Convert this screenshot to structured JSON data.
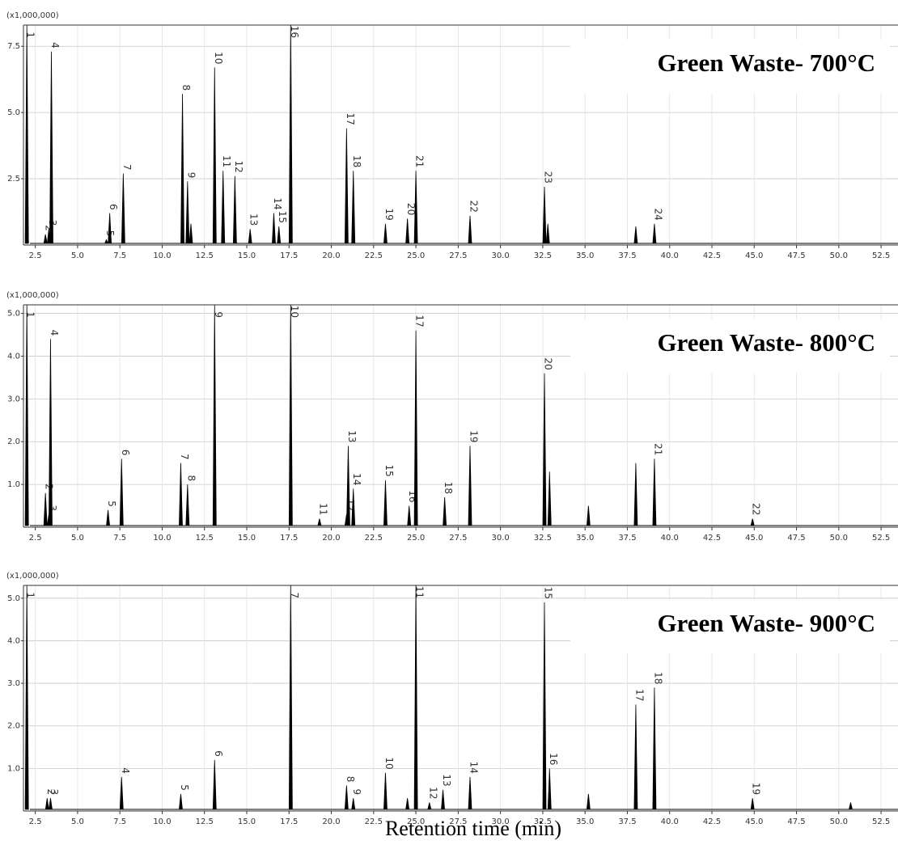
{
  "chart_data": [
    {
      "type": "chromatogram",
      "title": "Green Waste- 700°C",
      "y_multiplier": "(x1,000,000)",
      "color": "#000000",
      "grid": true,
      "x": [
        2.0,
        3.1,
        3.3,
        3.45,
        6.7,
        6.9,
        7.7,
        11.2,
        11.5,
        13.1,
        13.6,
        14.3,
        15.2,
        16.6,
        16.9,
        17.6,
        20.9,
        21.3,
        23.2,
        24.5,
        25.0,
        28.2,
        32.6,
        39.1,
        11.7,
        32.8,
        38.0
      ],
      "values": [
        8.3,
        0.4,
        0.6,
        7.3,
        0.2,
        1.2,
        2.7,
        5.7,
        2.4,
        6.7,
        2.8,
        2.6,
        0.6,
        1.2,
        0.7,
        8.3,
        4.4,
        2.8,
        0.8,
        1.0,
        2.8,
        1.1,
        2.2,
        0.8,
        0.8,
        0.8,
        0.7
      ],
      "peak_labels": [
        "1",
        "2",
        "3",
        "4",
        "5",
        "6",
        "7",
        "8",
        "9",
        "10",
        "11",
        "12",
        "13",
        "14",
        "15",
        "16",
        "17",
        "18",
        "19",
        "20",
        "21",
        "22",
        "23",
        "24",
        null,
        null,
        null
      ],
      "xlim": [
        1.8,
        53.5
      ],
      "ylim": [
        0,
        8.3
      ],
      "xticks": [
        2.5,
        {
          "value": 5,
          "label": "5.0"
        },
        7.5,
        {
          "value": 10,
          "label": "10.0"
        },
        12.5,
        {
          "value": 15,
          "label": "15.0"
        },
        17.5,
        {
          "value": 20,
          "label": "20.0"
        },
        22.5,
        {
          "value": 25,
          "label": "25.0"
        },
        27.5,
        {
          "value": 30,
          "label": "30.0"
        },
        32.5,
        {
          "value": 35,
          "label": "35.0"
        },
        37.5,
        {
          "value": 40,
          "label": "40.0"
        },
        42.5,
        {
          "value": 45,
          "label": "45.0"
        },
        47.5,
        {
          "value": 50,
          "label": "50.0"
        },
        52.5
      ],
      "yticks": [
        2.5,
        {
          "value": 5,
          "label": "5.0"
        },
        7.5
      ]
    },
    {
      "type": "chromatogram",
      "title": "Green Waste- 800°C",
      "y_multiplier": "(x1,000,000)",
      "color": "#000000",
      "grid": true,
      "x": [
        2.0,
        3.1,
        3.3,
        3.4,
        6.8,
        7.6,
        11.1,
        11.5,
        13.1,
        17.6,
        19.3,
        20.9,
        21.0,
        21.3,
        23.2,
        24.6,
        25.0,
        26.7,
        28.2,
        32.6,
        39.1,
        44.9,
        32.9,
        35.2,
        38.0
      ],
      "values": [
        5.2,
        0.8,
        0.3,
        4.4,
        0.4,
        1.6,
        1.5,
        1.0,
        5.2,
        5.2,
        0.2,
        0.3,
        1.9,
        0.9,
        1.1,
        0.5,
        4.6,
        0.7,
        1.9,
        3.6,
        1.6,
        0.2,
        1.3,
        0.5,
        1.5
      ],
      "peak_labels": [
        "1",
        "2",
        "3",
        "4",
        "5",
        "6",
        "7",
        "8",
        "9",
        "10",
        "11",
        "12",
        "13",
        "14",
        "15",
        "16",
        "17",
        "18",
        "19",
        "20",
        "21",
        "22",
        null,
        null,
        null
      ],
      "xlim": [
        1.8,
        53.5
      ],
      "ylim": [
        0,
        5.2
      ],
      "xticks": [
        2.5,
        {
          "value": 5,
          "label": "5.0"
        },
        7.5,
        {
          "value": 10,
          "label": "10.0"
        },
        12.5,
        {
          "value": 15,
          "label": "15.0"
        },
        17.5,
        {
          "value": 20,
          "label": "20.0"
        },
        22.5,
        {
          "value": 25,
          "label": "25.0"
        },
        27.5,
        {
          "value": 30,
          "label": "30.0"
        },
        32.5,
        {
          "value": 35,
          "label": "35.0"
        },
        37.5,
        {
          "value": 40,
          "label": "40.0"
        },
        42.5,
        {
          "value": 45,
          "label": "45.0"
        },
        47.5,
        {
          "value": 50,
          "label": "50.0"
        },
        52.5
      ],
      "yticks": [
        {
          "value": 1,
          "label": "1.0"
        },
        {
          "value": 2,
          "label": "2.0"
        },
        {
          "value": 3,
          "label": "3.0"
        },
        {
          "value": 4,
          "label": "4.0"
        },
        {
          "value": 5,
          "label": "5.0"
        }
      ]
    },
    {
      "type": "chromatogram",
      "title": "Green Waste- 900°C",
      "y_multiplier": "(x1,000,000)",
      "color": "#000000",
      "grid": true,
      "x": [
        2.0,
        3.2,
        3.4,
        7.6,
        11.1,
        13.1,
        17.6,
        20.9,
        21.3,
        23.2,
        25.0,
        25.8,
        26.6,
        28.2,
        32.6,
        32.9,
        38.0,
        39.1,
        44.9,
        24.5,
        35.2,
        50.7
      ],
      "values": [
        5.3,
        0.3,
        0.3,
        0.8,
        0.4,
        1.2,
        5.3,
        0.6,
        0.3,
        0.9,
        5.3,
        0.2,
        0.5,
        0.8,
        4.9,
        1.0,
        2.5,
        2.9,
        0.3,
        0.3,
        0.4,
        0.2
      ],
      "peak_labels": [
        "1",
        "2",
        "3",
        "4",
        "5",
        "6",
        "7",
        "8",
        "9",
        "10",
        "11",
        "12",
        "13",
        "14",
        "15",
        "16",
        "17",
        "18",
        "19",
        null,
        null,
        null
      ],
      "xlim": [
        1.8,
        53.5
      ],
      "ylim": [
        0,
        5.3
      ],
      "xticks": [
        2.5,
        {
          "value": 5,
          "label": "5.0"
        },
        7.5,
        {
          "value": 10,
          "label": "10.0"
        },
        12.5,
        {
          "value": 15,
          "label": "15.0"
        },
        17.5,
        {
          "value": 20,
          "label": "20.0"
        },
        22.5,
        {
          "value": 25,
          "label": "25.0"
        },
        27.5,
        {
          "value": 30,
          "label": "30.0"
        },
        32.5,
        {
          "value": 35,
          "label": "35.0"
        },
        37.5,
        {
          "value": 40,
          "label": "40.0"
        },
        42.5,
        {
          "value": 45,
          "label": "45.0"
        },
        47.5,
        {
          "value": 50,
          "label": "50.0"
        },
        52.5
      ],
      "yticks": [
        {
          "value": 1,
          "label": "1.0"
        },
        {
          "value": 2,
          "label": "2.0"
        },
        {
          "value": 3,
          "label": "3.0"
        },
        {
          "value": 4,
          "label": "4.0"
        },
        {
          "value": 5,
          "label": "5.0"
        }
      ],
      "xlabel": "Retention time (min)"
    }
  ]
}
